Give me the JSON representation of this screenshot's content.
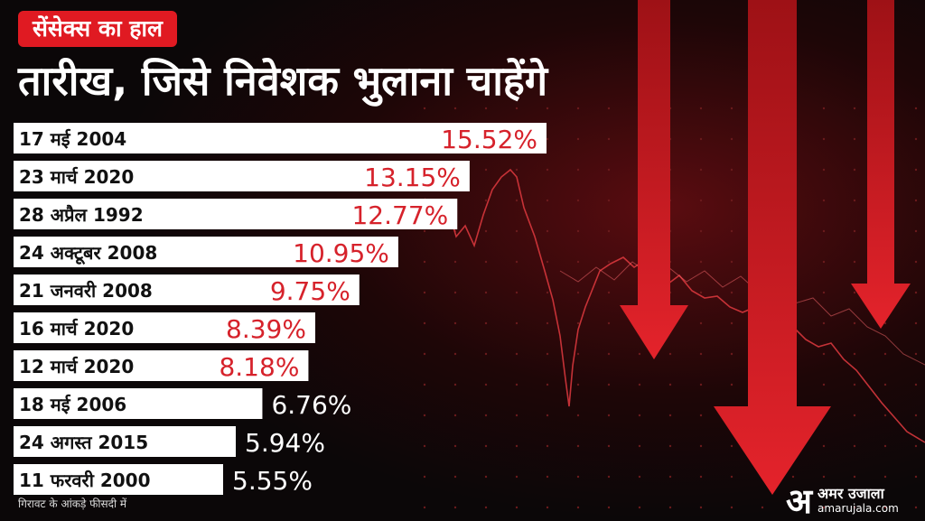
{
  "header": {
    "tag": "सेंसेक्स का हाल",
    "headline": "तारीख, जिसे निवेशक भुलाना चाहेंगे"
  },
  "chart_data": {
    "type": "bar",
    "orientation": "horizontal",
    "categories": [
      "17 मई 2004",
      "23 मार्च 2020",
      "28 अप्रैल 1992",
      "24 अक्टूबर 2008",
      "21 जनवरी 2008",
      "16 मार्च 2020",
      "12 मार्च 2020",
      "18 मई 2006",
      "24 अगस्त 2015",
      "11 फरवरी 2000"
    ],
    "values": [
      15.52,
      13.15,
      12.77,
      10.95,
      9.75,
      8.39,
      8.18,
      6.76,
      5.94,
      5.55
    ],
    "value_labels": [
      "15.52%",
      "13.15%",
      "12.77%",
      "10.95%",
      "9.75%",
      "8.39%",
      "8.18%",
      "6.76%",
      "5.94%",
      "5.55%"
    ],
    "value_colors": [
      "#d6222b",
      "#d6222b",
      "#d6222b",
      "#d6222b",
      "#d6222b",
      "#d6222b",
      "#d6222b",
      "#ffffff",
      "#ffffff",
      "#ffffff"
    ],
    "bar_color": "#ffffff",
    "grid": false,
    "legend": "none"
  },
  "footnote": "गिरावट के आंकड़े फीसदी में",
  "brand": {
    "mark": "अ",
    "name": "अमर उजाला",
    "site": "amarujala.com"
  },
  "colors": {
    "accent": "#e01a22",
    "background": "#0b0708",
    "arrow": "#e4232b"
  }
}
